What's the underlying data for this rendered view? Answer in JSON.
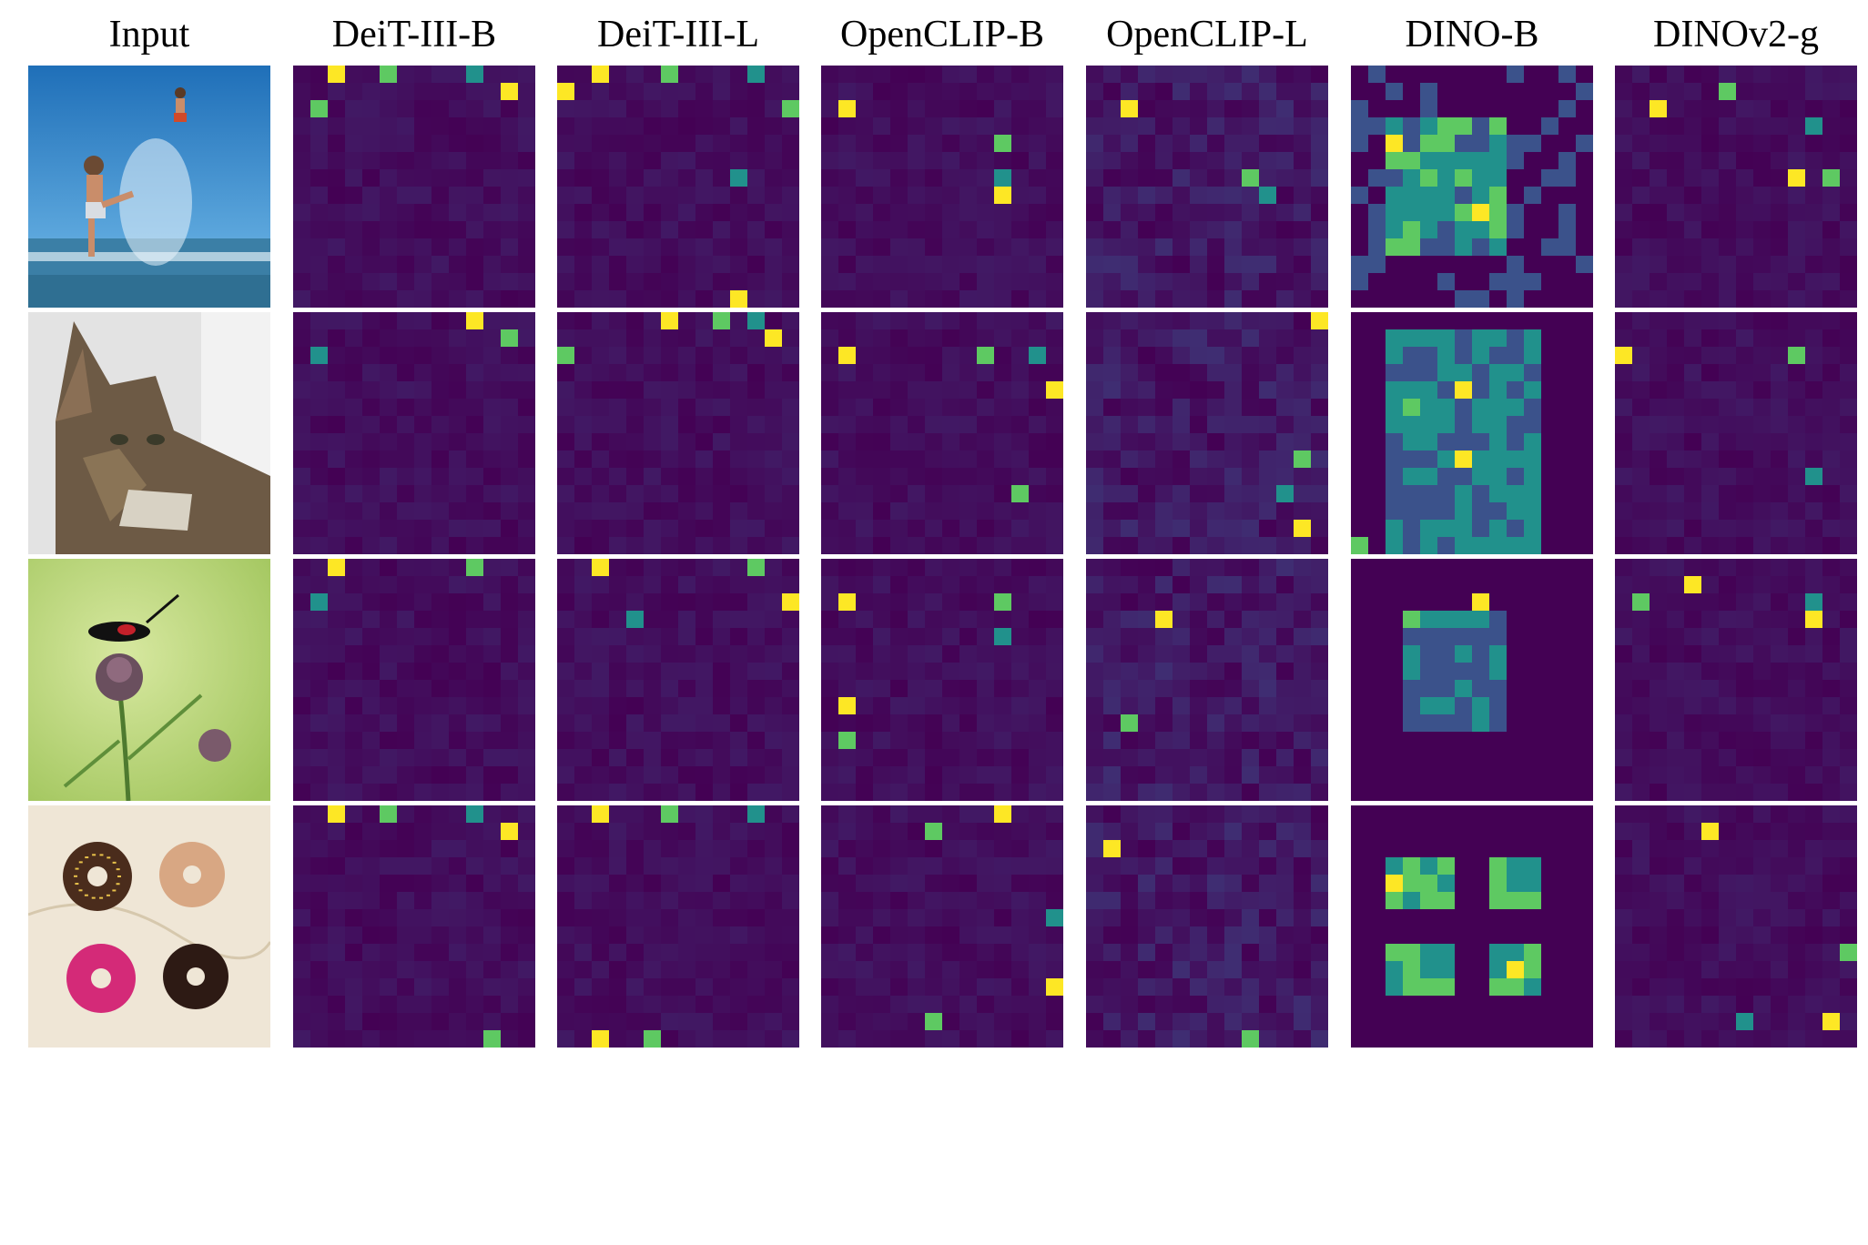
{
  "figure": {
    "columns": [
      {
        "title": "Input",
        "kind": "input"
      },
      {
        "title": "DeiT-III-B",
        "kind": "map"
      },
      {
        "title": "DeiT-III-L",
        "kind": "map"
      },
      {
        "title": "OpenCLIP-B",
        "kind": "map"
      },
      {
        "title": "OpenCLIP-L",
        "kind": "map"
      },
      {
        "title": "DINO-B",
        "kind": "map"
      },
      {
        "title": "DINOv2-g",
        "kind": "map"
      }
    ],
    "rows": [
      {
        "subject": "beach-splash"
      },
      {
        "subject": "cat"
      },
      {
        "subject": "insect-on-flower"
      },
      {
        "subject": "donuts"
      }
    ],
    "colormap": [
      "#440154",
      "#3b528b",
      "#21918c",
      "#5ec962",
      "#fde725"
    ],
    "background_color": "#ffffff"
  }
}
